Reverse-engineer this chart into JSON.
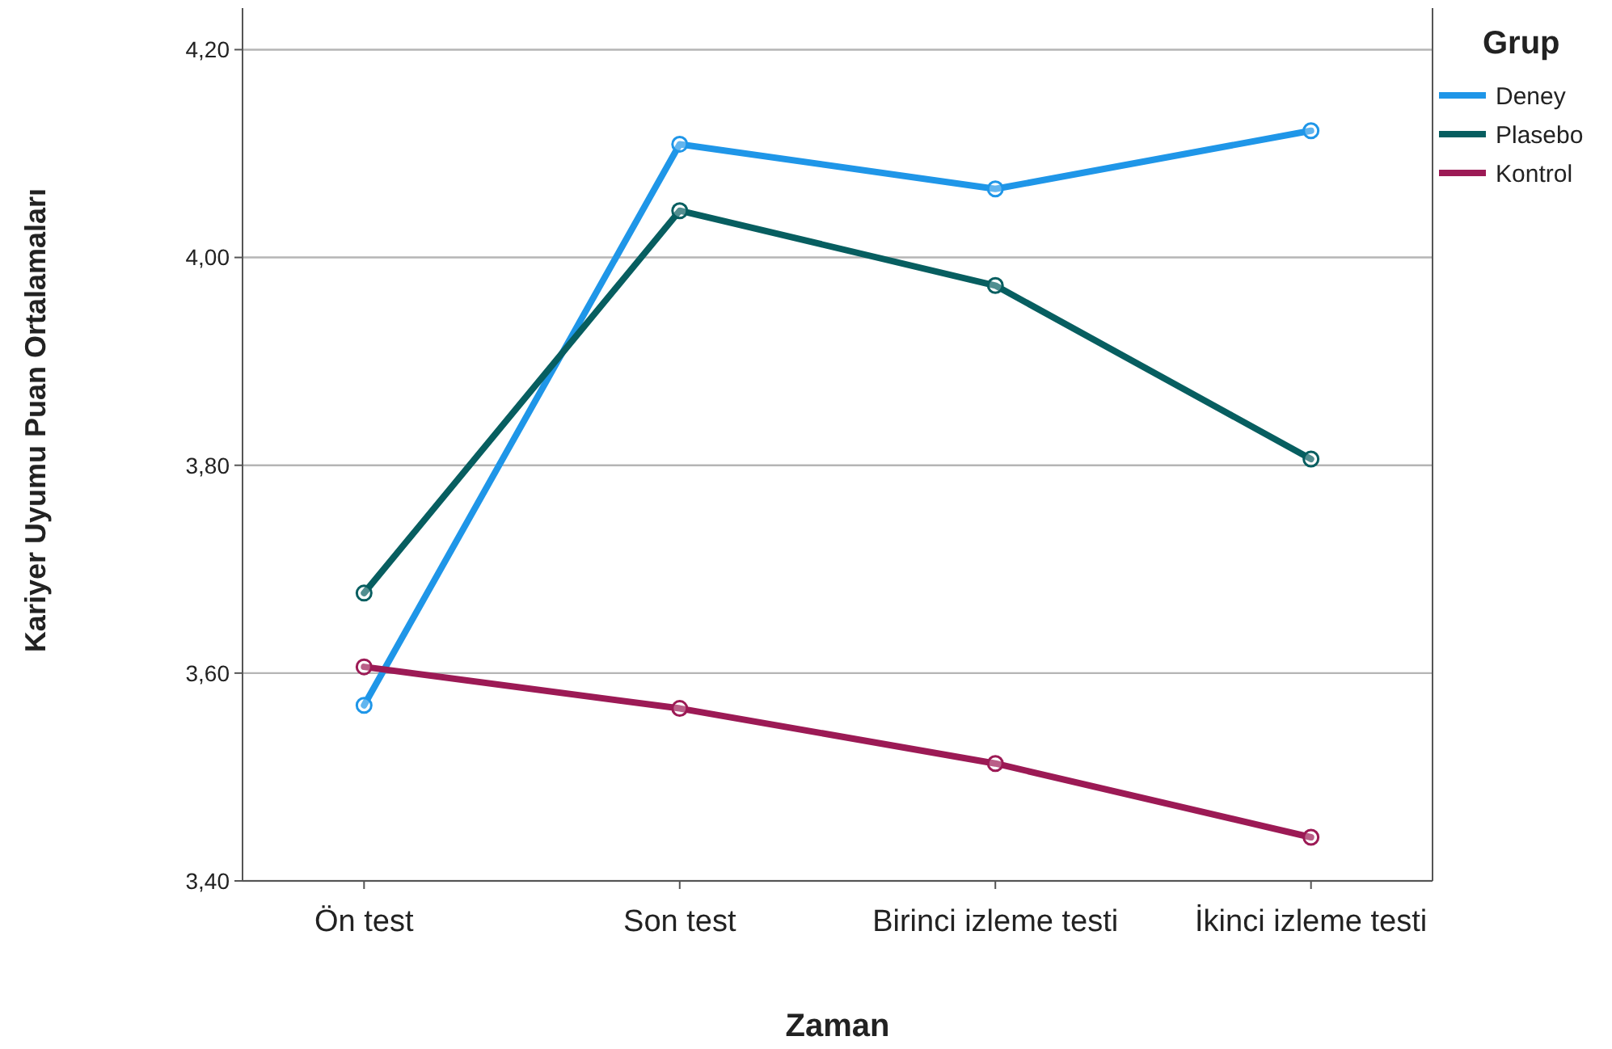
{
  "chart_data": {
    "type": "line",
    "xlabel": "Zaman",
    "ylabel": "Kariyer Uyumu Puan Ortalamaları",
    "legend_title": "Grup",
    "legend": "top right",
    "marker": "circle",
    "line_style": "solid",
    "grid": "y",
    "categories": [
      "Ön test",
      "Son test",
      "Birinci izleme testi",
      "İkinci izleme testi"
    ],
    "ylim": [
      3.4,
      4.24
    ],
    "yticks": [
      {
        "value": 3.4,
        "label": "3,40"
      },
      {
        "value": 3.6,
        "label": "3,60"
      },
      {
        "value": 3.8,
        "label": "3,80"
      },
      {
        "value": 4.0,
        "label": "4,00"
      },
      {
        "value": 4.2,
        "label": "4,20"
      }
    ],
    "series": [
      {
        "name": "Deney",
        "color": "#1f96e8",
        "values": [
          3.569,
          4.109,
          4.066,
          4.122
        ]
      },
      {
        "name": "Plasebo",
        "color": "#075e60",
        "values": [
          3.677,
          4.045,
          3.973,
          3.806
        ]
      },
      {
        "name": "Kontrol",
        "color": "#9c1a55",
        "values": [
          3.606,
          3.566,
          3.513,
          3.442
        ]
      }
    ]
  }
}
